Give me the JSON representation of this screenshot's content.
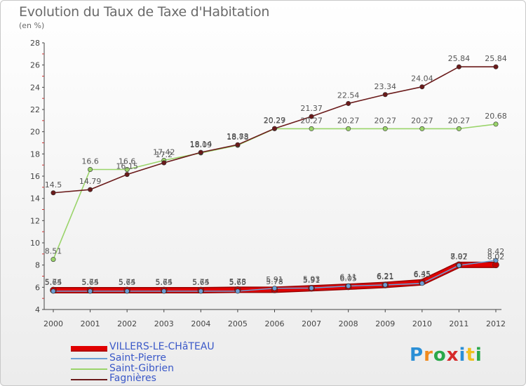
{
  "chart_data": {
    "type": "line",
    "title": "Evolution du Taux de Taxe d'Habitation",
    "subtitle": "(en %)",
    "x": [
      "2000",
      "2001",
      "2002",
      "2003",
      "2004",
      "2005",
      "2006",
      "2007",
      "2008",
      "2009",
      "2010",
      "2011",
      "2012"
    ],
    "ylim": [
      4,
      28
    ],
    "yticks": [
      4,
      6,
      8,
      10,
      12,
      14,
      16,
      18,
      20,
      22,
      24,
      26,
      28
    ],
    "grid": false,
    "legend_position": "bottom-left",
    "series": [
      {
        "name": "VILLERS-LE-CHâTEAU",
        "color": "#e00000",
        "values": [
          5.74,
          5.74,
          5.74,
          5.74,
          5.74,
          5.78,
          5.78,
          5.91,
          6.05,
          6.21,
          6.45,
          8.02,
          8.02
        ],
        "labels": [
          "5.74",
          "5.74",
          "5.74",
          "5.74",
          "5.74",
          "5.78",
          "5.78",
          "5.91",
          "6.05",
          "6.21",
          "6.45",
          "8.02",
          "8.02"
        ]
      },
      {
        "name": "Saint-Pierre",
        "color": "#6c9fd6",
        "values": [
          5.65,
          5.65,
          5.65,
          5.65,
          5.65,
          5.65,
          5.91,
          5.93,
          6.11,
          6.21,
          6.35,
          7.97,
          8.42
        ],
        "labels": [
          "5.65",
          "5.65",
          "5.65",
          "5.65",
          "5.65",
          "5.65",
          "5.91",
          "5.93",
          "6.11",
          "6.21",
          "6.35",
          "7.97",
          "8.42"
        ]
      },
      {
        "name": "Saint-Gibrien",
        "color": "#9ad46a",
        "values": [
          8.51,
          16.6,
          16.6,
          17.42,
          18.09,
          18.78,
          20.27,
          20.27,
          20.27,
          20.27,
          20.27,
          20.27,
          20.68
        ],
        "labels": [
          "8.51",
          "16.6",
          "16.6",
          "17.42",
          "18.09",
          "18.78",
          "20.27",
          "20.27",
          "20.27",
          "20.27",
          "20.27",
          "20.27",
          "20.68"
        ]
      },
      {
        "name": "Fagnières",
        "color": "#6a1a1a",
        "values": [
          14.5,
          14.79,
          16.15,
          17.2,
          18.14,
          18.83,
          20.29,
          21.37,
          22.54,
          23.34,
          24.04,
          25.84,
          25.84
        ],
        "labels": [
          "14.5",
          "14.79",
          "16.15",
          "17.2",
          "18.14",
          "18.83",
          "20.29",
          "21.37",
          "22.54",
          "23.34",
          "24.04",
          "25.84",
          "25.84"
        ]
      }
    ]
  },
  "legend": [
    "VILLERS-LE-CHâTEAU",
    "Saint-Pierre",
    "Saint-Gibrien",
    "Fagnières"
  ],
  "logo": {
    "text": "Proxiti",
    "letters": [
      "P",
      "r",
      "o",
      "x",
      "i",
      "t",
      "i"
    ],
    "colors": [
      "#2a8fd6",
      "#f08a1e",
      "#2aa84a",
      "#d62a2a",
      "#2a8fd6",
      "#f0c01e",
      "#2aa84a"
    ]
  }
}
